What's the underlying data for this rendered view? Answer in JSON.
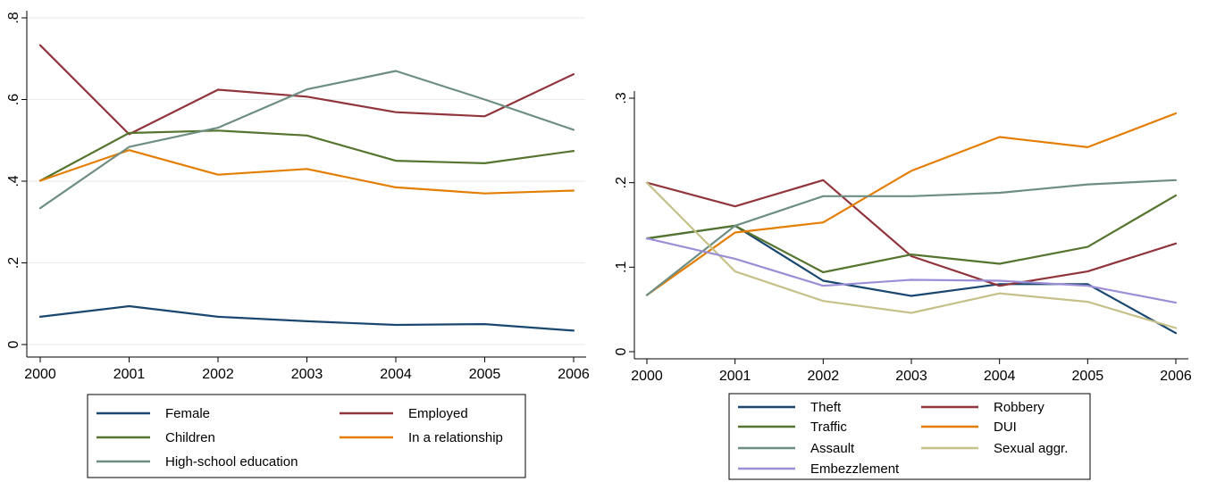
{
  "chart_data": [
    {
      "type": "line",
      "title": "",
      "xlabel": "",
      "ylabel": "",
      "x": [
        2000,
        2001,
        2002,
        2003,
        2004,
        2005,
        2006
      ],
      "x_tick_labels": [
        "2000",
        "2001",
        "2002",
        "2003",
        "2004",
        "2005",
        "2006"
      ],
      "y_ticks": [
        0,
        0.2,
        0.4,
        0.6,
        0.8
      ],
      "y_tick_labels": [
        "0",
        ".2",
        ".4",
        ".6",
        ".8"
      ],
      "ylim": [
        0,
        0.8
      ],
      "grid": true,
      "legend_position": "bottom",
      "series": [
        {
          "name": "Female",
          "color": "#1a476f",
          "values": [
            0.068,
            0.094,
            0.068,
            0.057,
            0.048,
            0.05,
            0.034
          ]
        },
        {
          "name": "Employed",
          "color": "#90353b",
          "values": [
            0.733,
            0.515,
            0.624,
            0.607,
            0.569,
            0.559,
            0.662
          ]
        },
        {
          "name": "Children",
          "color": "#55752f",
          "values": [
            0.401,
            0.518,
            0.524,
            0.512,
            0.45,
            0.444,
            0.474
          ]
        },
        {
          "name": "In a relationship",
          "color": "#e37e00",
          "values": [
            0.401,
            0.476,
            0.416,
            0.43,
            0.385,
            0.37,
            0.377
          ]
        },
        {
          "name": "High-school education",
          "color": "#6e8e84",
          "values": [
            0.334,
            0.484,
            0.531,
            0.625,
            0.67,
            0.6,
            0.526
          ]
        }
      ]
    },
    {
      "type": "line",
      "title": "",
      "xlabel": "",
      "ylabel": "",
      "x": [
        2000,
        2001,
        2002,
        2003,
        2004,
        2005,
        2006
      ],
      "x_tick_labels": [
        "2000",
        "2001",
        "2002",
        "2003",
        "2004",
        "2005",
        "2006"
      ],
      "y_ticks": [
        0,
        0.1,
        0.2,
        0.3
      ],
      "y_tick_labels": [
        "0",
        ".1",
        ".2",
        ".3"
      ],
      "ylim": [
        0,
        0.3
      ],
      "grid": false,
      "legend_position": "bottom",
      "series": [
        {
          "name": "Theft",
          "color": "#1a476f",
          "values": [
            0.134,
            0.149,
            0.084,
            0.066,
            0.08,
            0.08,
            0.022
          ]
        },
        {
          "name": "Robbery",
          "color": "#90353b",
          "values": [
            0.2,
            0.172,
            0.203,
            0.113,
            0.078,
            0.095,
            0.128
          ]
        },
        {
          "name": "Traffic",
          "color": "#55752f",
          "values": [
            0.134,
            0.149,
            0.094,
            0.115,
            0.104,
            0.124,
            0.185
          ]
        },
        {
          "name": "DUI",
          "color": "#e37e00",
          "values": [
            0.067,
            0.141,
            0.153,
            0.214,
            0.254,
            0.242,
            0.282
          ]
        },
        {
          "name": "Assault",
          "color": "#6e8e84",
          "values": [
            0.067,
            0.149,
            0.184,
            0.184,
            0.188,
            0.198,
            0.203
          ]
        },
        {
          "name": "Sexual aggr.",
          "color": "#c6c089",
          "values": [
            0.2,
            0.095,
            0.06,
            0.046,
            0.069,
            0.059,
            0.028
          ]
        },
        {
          "name": "Embezzlement",
          "color": "#9b8ed6",
          "values": [
            0.134,
            0.11,
            0.078,
            0.085,
            0.084,
            0.078,
            0.058
          ]
        }
      ]
    }
  ]
}
